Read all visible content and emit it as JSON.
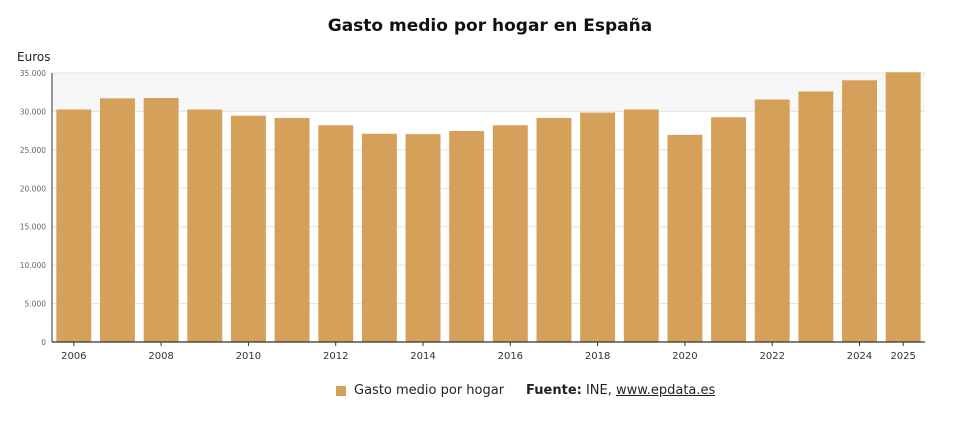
{
  "chart_data": {
    "type": "bar",
    "title": "Gasto medio por hogar en España",
    "ylabel": "Euros",
    "xlabel": "",
    "ylim": [
      0,
      35000
    ],
    "yticks": [
      0,
      5000,
      10000,
      15000,
      20000,
      25000,
      30000,
      35000
    ],
    "ytick_labels": [
      "0",
      "5.000",
      "10.000",
      "15.000",
      "20.000",
      "25.000",
      "30.000",
      "35.000"
    ],
    "categories": [
      "2006",
      "2007",
      "2008",
      "2009",
      "2010",
      "2011",
      "2012",
      "2013",
      "2014",
      "2015",
      "2016",
      "2017",
      "2018",
      "2019",
      "2020",
      "2021",
      "2022",
      "2023",
      "2024",
      "2025"
    ],
    "xtick_labels": [
      "2006",
      "",
      "2008",
      "",
      "2010",
      "",
      "2012",
      "",
      "2014",
      "",
      "2016",
      "",
      "2018",
      "",
      "2020",
      "",
      "2022",
      "",
      "2024",
      "2025"
    ],
    "series": [
      {
        "name": "Gasto medio por hogar",
        "color": "#d4a05a",
        "values": [
          30250,
          31700,
          31750,
          30250,
          29450,
          29150,
          28200,
          27100,
          27050,
          27450,
          28200,
          29150,
          29850,
          30250,
          26950,
          29250,
          31550,
          32600,
          34050,
          35100
        ]
      }
    ],
    "grid": true,
    "legend_position": "bottom"
  },
  "legend": {
    "series_label": "Gasto medio por hogar",
    "source_prefix": "Fuente:",
    "source_text": " INE, ",
    "source_link": "www.epdata.es"
  },
  "colors": {
    "bar": "#d4a05a",
    "plot_top_band": "#f7f7f7",
    "grid": "#e3e3e3",
    "axis": "#333333"
  }
}
